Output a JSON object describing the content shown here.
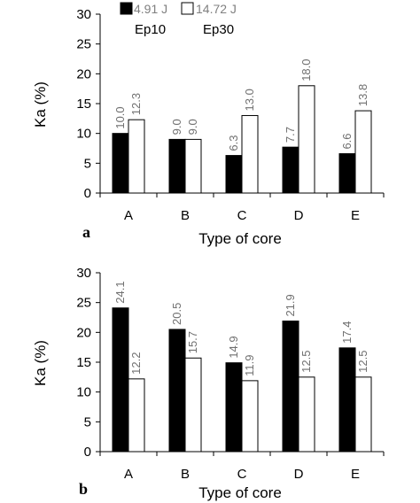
{
  "chart_data": [
    {
      "type": "bar",
      "panel": "a",
      "categories": [
        "A",
        "B",
        "C",
        "D",
        "E"
      ],
      "series": [
        {
          "name": "4.91 J",
          "values": [
            10.0,
            9.0,
            6.3,
            7.7,
            6.6
          ],
          "color": "#000000"
        },
        {
          "name": "14.72 J",
          "values": [
            12.3,
            9.0,
            13.0,
            18.0,
            13.8
          ],
          "color": "#ffffff"
        }
      ],
      "series_sublabels": [
        "Ep10",
        "Ep30"
      ],
      "data_labels": [
        [
          "10.0",
          "9.0",
          "6.3",
          "7.7",
          "6.6"
        ],
        [
          "12.3",
          "9.0",
          "13.0",
          "18.0",
          "13.8"
        ]
      ],
      "xlabel": "Type of core",
      "ylabel": "Ka  (%)",
      "ylim": [
        0,
        30
      ],
      "yticks": [
        "0",
        "5",
        "10",
        "15",
        "20",
        "25",
        "30"
      ],
      "grid": false,
      "legend": "top-left"
    },
    {
      "type": "bar",
      "panel": "b",
      "categories": [
        "A",
        "B",
        "C",
        "D",
        "E"
      ],
      "series": [
        {
          "values": [
            24.1,
            20.5,
            14.9,
            21.9,
            17.4
          ],
          "color": "#000000"
        },
        {
          "values": [
            12.2,
            15.7,
            11.9,
            12.5,
            12.5
          ],
          "color": "#ffffff"
        }
      ],
      "data_labels": [
        [
          "24.1",
          "20.5",
          "14.9",
          "21.9",
          "17.4"
        ],
        [
          "12.2",
          "15.7",
          "11.9",
          "12.5",
          "12.5"
        ]
      ],
      "xlabel": "Type of core",
      "ylabel": "Ka  (%)",
      "ylim": [
        0,
        30
      ],
      "yticks": [
        "0",
        "5",
        "10",
        "15",
        "20",
        "25",
        "30"
      ],
      "grid": false
    }
  ],
  "panel_letters": [
    "a",
    "b"
  ]
}
